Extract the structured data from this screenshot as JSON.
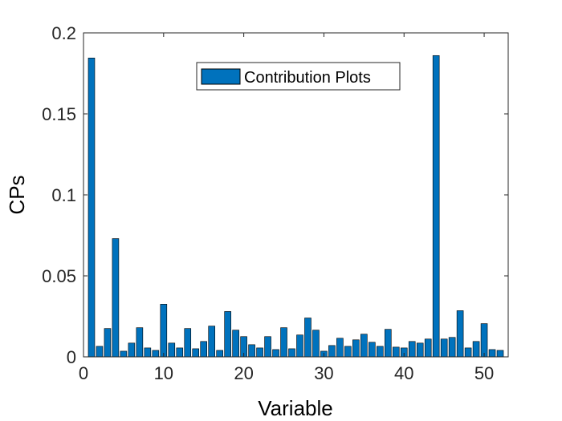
{
  "chart_data": {
    "type": "bar",
    "xlabel": "Variable",
    "ylabel": "CPs",
    "xlim": [
      0,
      53
    ],
    "ylim": [
      0,
      0.2
    ],
    "x_ticks": [
      0,
      10,
      20,
      30,
      40,
      50
    ],
    "y_ticks": [
      0,
      0.05,
      0.1,
      0.15,
      0.2
    ],
    "x_tick_labels": [
      "0",
      "10",
      "20",
      "30",
      "40",
      "50"
    ],
    "y_tick_labels": [
      "0",
      "0.05",
      "0.1",
      "0.15",
      "0.2"
    ],
    "grid": false,
    "legend": {
      "position": "top-center",
      "entries": [
        "Contribution Plots"
      ]
    },
    "series": [
      {
        "name": "Contribution Plots",
        "color": "#0072BD",
        "x": [
          1,
          2,
          3,
          4,
          5,
          6,
          7,
          8,
          9,
          10,
          11,
          12,
          13,
          14,
          15,
          16,
          17,
          18,
          19,
          20,
          21,
          22,
          23,
          24,
          25,
          26,
          27,
          28,
          29,
          30,
          31,
          32,
          33,
          34,
          35,
          36,
          37,
          38,
          39,
          40,
          41,
          42,
          43,
          44,
          45,
          46,
          47,
          48,
          49,
          50,
          51,
          52
        ],
        "values": [
          0.1845,
          0.0065,
          0.0175,
          0.073,
          0.0035,
          0.0085,
          0.018,
          0.0055,
          0.004,
          0.0325,
          0.0085,
          0.0055,
          0.0175,
          0.005,
          0.0095,
          0.019,
          0.004,
          0.028,
          0.0165,
          0.0125,
          0.0075,
          0.0055,
          0.0125,
          0.0045,
          0.018,
          0.005,
          0.0135,
          0.024,
          0.0165,
          0.0035,
          0.007,
          0.0115,
          0.0065,
          0.0105,
          0.014,
          0.009,
          0.0065,
          0.017,
          0.006,
          0.0055,
          0.0095,
          0.0085,
          0.011,
          0.186,
          0.011,
          0.012,
          0.0285,
          0.0055,
          0.0095,
          0.0205,
          0.0045,
          0.004
        ]
      }
    ]
  }
}
